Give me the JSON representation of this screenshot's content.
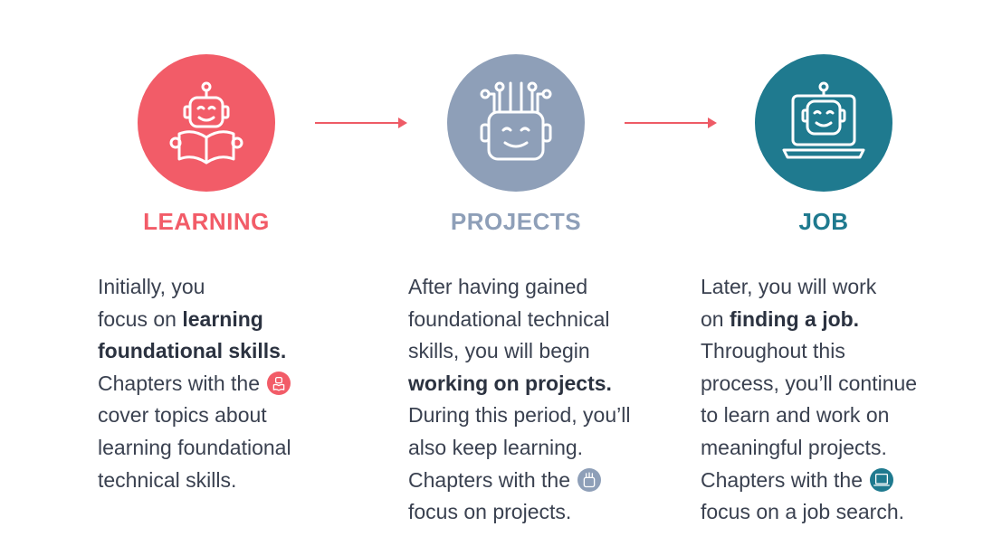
{
  "stages": {
    "learning": {
      "title": "LEARNING",
      "icon": "robot-reading-book-icon",
      "color": "#f25c68",
      "text": {
        "l1": "Initially, you",
        "l2a": "focus on ",
        "l2b": "learning",
        "l3": "foundational skills.",
        "l4": "Chapters with the",
        "l5": "cover topics about",
        "l6": "learning foundational",
        "l7": "technical skills."
      }
    },
    "projects": {
      "title": "PROJECTS",
      "icon": "robot-head-circuits-icon",
      "color": "#8e9fb8",
      "text": {
        "l1": "After having gained",
        "l2": "foundational technical",
        "l3": "skills, you will begin",
        "l4": "working on projects.",
        "l5": "During this period, you’ll",
        "l6": "also keep learning.",
        "l7": "Chapters with the",
        "l8": "focus on projects."
      }
    },
    "job": {
      "title": "JOB",
      "icon": "robot-laptop-icon",
      "color": "#1f7a8f",
      "text": {
        "l1": "Later, you will work",
        "l2a": "on ",
        "l2b": "finding a job.",
        "l3": "Throughout this",
        "l4": "process, you’ll continue",
        "l5": "to learn and work on",
        "l6": "meaningful projects.",
        "l7": "Chapters with the",
        "l8": "focus on a job search."
      }
    }
  },
  "arrow_color": "#ee5b66"
}
